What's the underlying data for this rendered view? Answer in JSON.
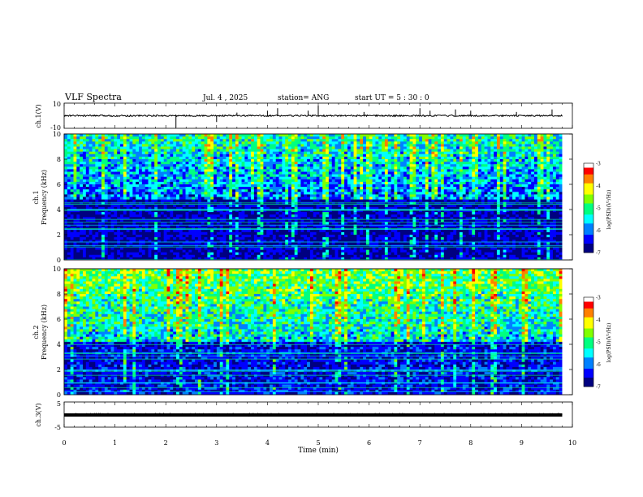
{
  "header": {
    "title": "VLF Spectra",
    "date": "Jul. 4 , 2025",
    "station": "station= ANG",
    "start": "start UT = 5 : 30 : 0"
  },
  "colors": {
    "colormap": [
      "#000080",
      "#0000ff",
      "#0080ff",
      "#00ffff",
      "#00ff80",
      "#80ff00",
      "#ffff00",
      "#ff8000",
      "#ff0000",
      "#ffffff"
    ],
    "trace": "#000000",
    "frame": "#000000"
  },
  "chart_data": [
    {
      "type": "line",
      "ylabel": "ch.1(V)",
      "xlim": [
        0,
        10
      ],
      "ylim": [
        -10,
        10
      ],
      "yticks": [
        "10",
        "-10"
      ],
      "baseline": 0,
      "spikes": [
        {
          "x": 2.2,
          "y": -9.5
        },
        {
          "x": 3.0,
          "y": -5
        },
        {
          "x": 3.4,
          "y": 2.5
        },
        {
          "x": 4.0,
          "y": 4
        },
        {
          "x": 4.2,
          "y": 6
        },
        {
          "x": 4.8,
          "y": 4
        },
        {
          "x": 5.0,
          "y": 8
        },
        {
          "x": 5.9,
          "y": 3
        },
        {
          "x": 7.0,
          "y": 6
        },
        {
          "x": 7.2,
          "y": 4
        },
        {
          "x": 7.7,
          "y": 5
        },
        {
          "x": 8.0,
          "y": 4
        },
        {
          "x": 8.9,
          "y": 3
        },
        {
          "x": 9.6,
          "y": 5
        }
      ]
    },
    {
      "type": "heatmap",
      "ylabel_top": "ch.1",
      "ylabel": "Frequency (kHz)",
      "xlim": [
        0,
        9.8
      ],
      "ylim": [
        0,
        10
      ],
      "yticks": [
        "0",
        "2",
        "4",
        "6",
        "8",
        "10"
      ],
      "colorbar_label": "log(PSD)(V²/Hz)",
      "colorbar_ticks": [
        "-3",
        "-4",
        "-5",
        "-6",
        "-7"
      ],
      "colorbar_range": [
        -7,
        -3
      ],
      "low_band_kHz": 4.8,
      "mean_level_high": -5.2,
      "mean_level_low": -6.6
    },
    {
      "type": "heatmap",
      "ylabel_top": "ch.2",
      "ylabel": "Frequency (kHz)",
      "xlim": [
        0,
        9.8
      ],
      "ylim": [
        0,
        10
      ],
      "yticks": [
        "0",
        "2",
        "4",
        "6",
        "8",
        "10"
      ],
      "colorbar_label": "log(PSD)(V²/Hz)",
      "colorbar_ticks": [
        "-3",
        "-4",
        "-5",
        "-6",
        "-7"
      ],
      "colorbar_range": [
        -7,
        -3
      ],
      "low_band_kHz": 4.3,
      "mean_level_high": -4.7,
      "mean_level_low": -6.4
    },
    {
      "type": "line",
      "ylabel": "ch.3(V)",
      "xlabel": "Time (min)",
      "xlim": [
        0,
        10
      ],
      "ylim": [
        -5,
        5
      ],
      "yticks": [
        "5",
        "-5"
      ],
      "xticks": [
        "0",
        "1",
        "2",
        "3",
        "4",
        "5",
        "6",
        "7",
        "8",
        "9",
        "10"
      ],
      "baseline": 0
    }
  ]
}
